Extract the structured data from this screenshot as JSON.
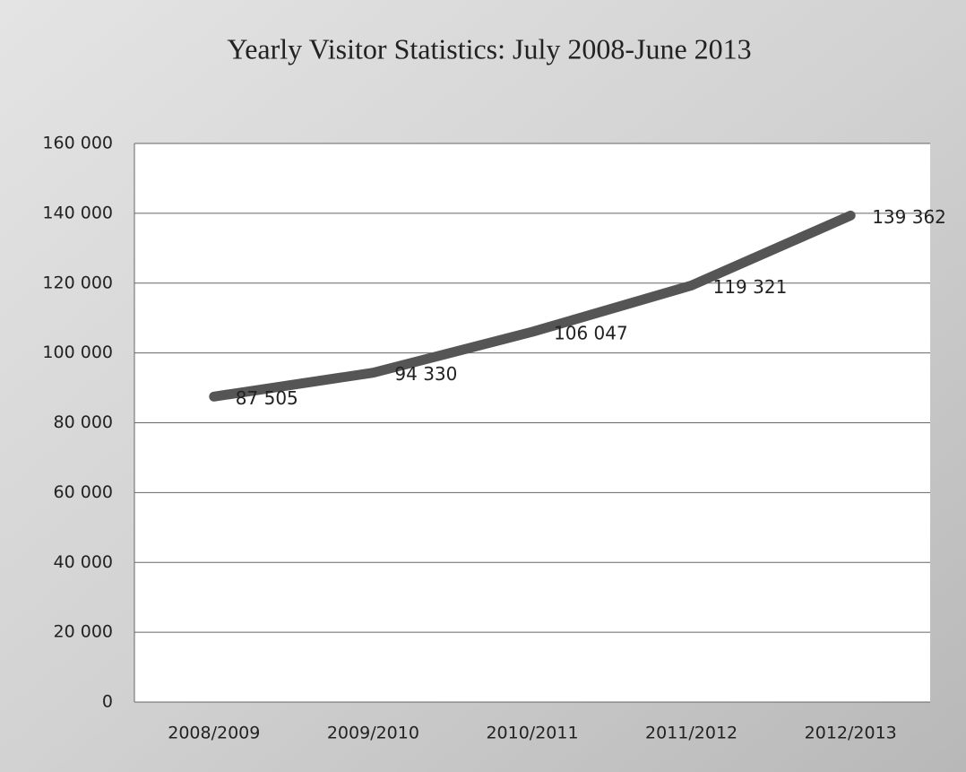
{
  "chart_data": {
    "type": "line",
    "title": "Yearly Visitor Statistics: July 2008-June 2013",
    "categories": [
      "2008/2009",
      "2009/2010",
      "2010/2011",
      "2011/2012",
      "2012/2013"
    ],
    "series": [
      {
        "name": "Visitors",
        "color": "#555555",
        "values": [
          87505,
          94330,
          106047,
          119321,
          139362
        ],
        "value_labels": [
          "87 505",
          "94 330",
          "106 047",
          "119 321",
          "139 362"
        ]
      }
    ],
    "ylim": [
      0,
      160000
    ],
    "yticks": [
      0,
      {
        "value": 20000,
        "label": "20 000"
      },
      {
        "value": 40000,
        "label": "40 000"
      },
      {
        "value": 60000,
        "label": "60 000"
      },
      {
        "value": 80000,
        "label": "80 000"
      },
      {
        "value": 100000,
        "label": "100 000"
      },
      {
        "value": 120000,
        "label": "120 000"
      },
      {
        "value": 140000,
        "label": "140 000"
      },
      {
        "value": 160000,
        "label": "160 000"
      }
    ],
    "grid": true
  }
}
